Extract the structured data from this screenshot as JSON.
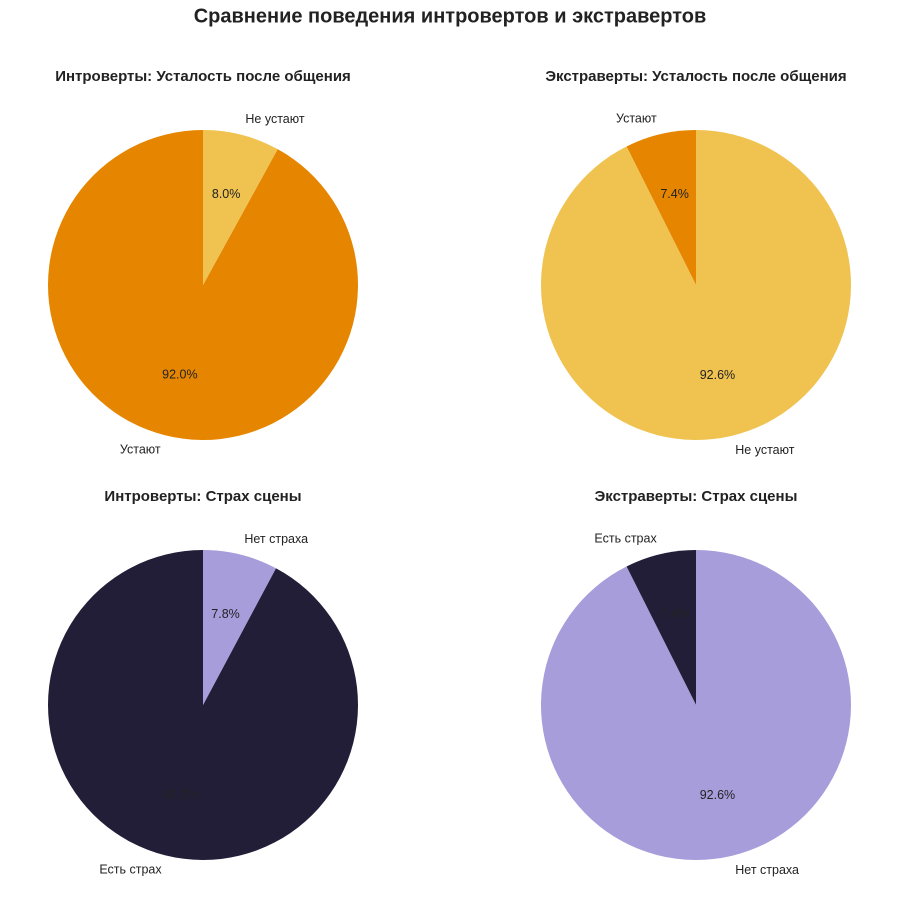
{
  "title": "Сравнение поведения интровертов и экстравертов",
  "chart_data": [
    {
      "type": "pie",
      "title": "Интроверты: Усталость после общения",
      "categories": [
        "Устают",
        "Не устают"
      ],
      "values": [
        92.0,
        8.0
      ],
      "value_labels": [
        "92.0%",
        "8.0%"
      ],
      "colors": [
        "#e68600",
        "#f0c350"
      ],
      "label_color": "#222222"
    },
    {
      "type": "pie",
      "title": "Экстраверты: Усталость после общения",
      "categories": [
        "Устают",
        "Не устают"
      ],
      "values": [
        7.4,
        92.6
      ],
      "value_labels": [
        "7.4%",
        "92.6%"
      ],
      "colors": [
        "#e68600",
        "#f0c350"
      ],
      "label_color": "#222222"
    },
    {
      "type": "pie",
      "title": "Интроверты: Страх сцены",
      "categories": [
        "Есть страх",
        "Нет страха"
      ],
      "values": [
        92.2,
        7.8
      ],
      "value_labels": [
        "92.2%",
        "7.8%"
      ],
      "colors": [
        "#221e38",
        "#a79ddb"
      ],
      "label_color": "#222222"
    },
    {
      "type": "pie",
      "title": "Экстраверты: Страх сцены",
      "categories": [
        "Есть страх",
        "Нет страха"
      ],
      "values": [
        7.4,
        92.6
      ],
      "value_labels": [
        "7.4%",
        "92.6%"
      ],
      "colors": [
        "#221e38",
        "#a79ddb"
      ],
      "label_color": "#222222"
    }
  ]
}
